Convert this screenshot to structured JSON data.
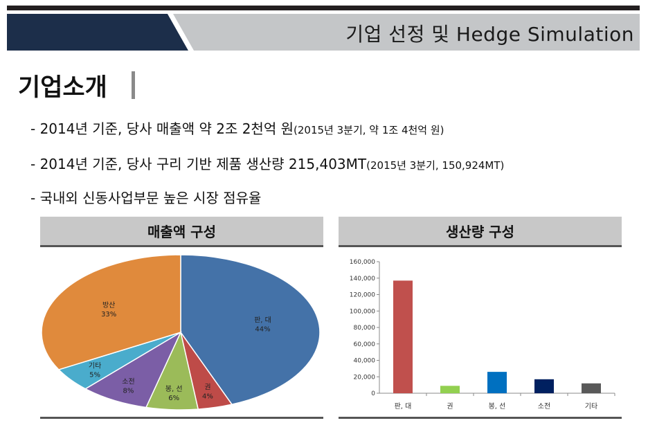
{
  "header": {
    "title": "기업 선정 및 Hedge Simulation"
  },
  "section": {
    "title": "기업소개"
  },
  "bullets": [
    {
      "marker": "-",
      "main": "2014년 기준, 당사 매출액 약 2조 2천억 원",
      "sub": "(2015년 3분기, 약 1조 4천억 원)"
    },
    {
      "marker": "-",
      "main": "2014년 기준, 당사 구리 기반 제품 생산량 215,403MT",
      "sub": "(2015년 3분기, 150,924MT)"
    },
    {
      "marker": "-",
      "main": "국내외 신동사업부문 높은 시장 점유율",
      "sub": ""
    }
  ],
  "panels": {
    "left_title": "매출액 구성",
    "right_title": "생산량 구성"
  },
  "chart_data": [
    {
      "type": "pie",
      "title": "매출액 구성",
      "slices": [
        {
          "label": "판, 대",
          "value": 44,
          "pct": "44%",
          "color": "#4472a8"
        },
        {
          "label": "권",
          "value": 4,
          "pct": "4%",
          "color": "#be4b48"
        },
        {
          "label": "봉, 선",
          "value": 6,
          "pct": "6%",
          "color": "#9bbb59"
        },
        {
          "label": "소전",
          "value": 8,
          "pct": "8%",
          "color": "#7b5ea6"
        },
        {
          "label": "기타",
          "value": 5,
          "pct": "5%",
          "color": "#4aaccc"
        },
        {
          "label": "방산",
          "value": 33,
          "pct": "33%",
          "color": "#e08a3c"
        }
      ]
    },
    {
      "type": "bar",
      "title": "생산량 구성",
      "categories": [
        "판, 대",
        "권",
        "봉, 선",
        "소전",
        "기타"
      ],
      "values": [
        137000,
        9000,
        26000,
        17000,
        12000
      ],
      "colors": [
        "#c0504d",
        "#92d050",
        "#0070c0",
        "#002060",
        "#595959"
      ],
      "ylim": [
        0,
        160000
      ],
      "yticks": [
        "0",
        "20,000",
        "40,000",
        "60,000",
        "80,000",
        "100,000",
        "120,000",
        "140,000",
        "160,000"
      ],
      "grid": false
    }
  ]
}
